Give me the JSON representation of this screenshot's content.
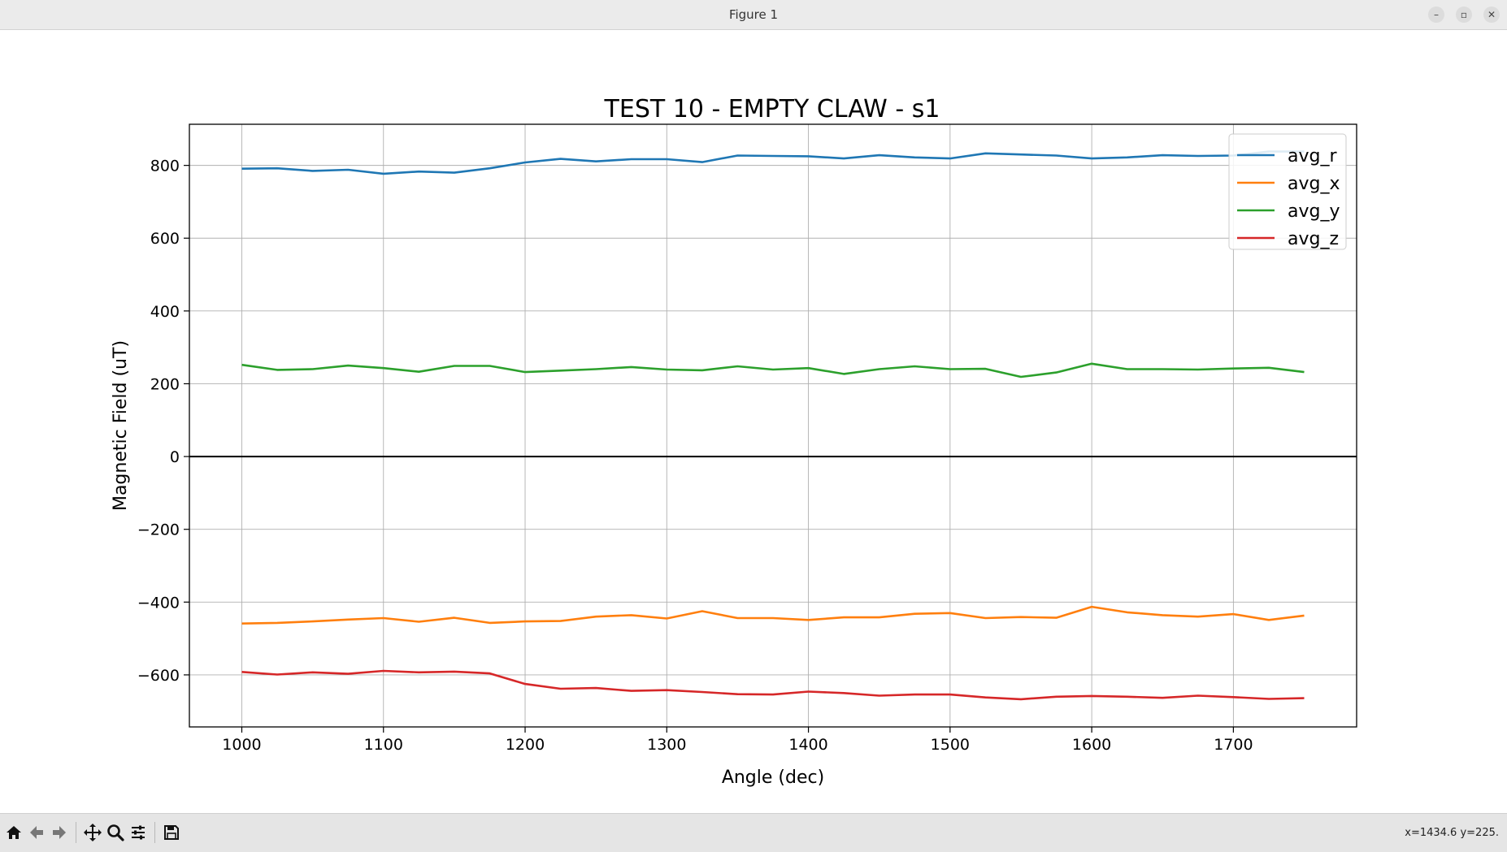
{
  "window": {
    "title": "Figure 1"
  },
  "window_controls": {
    "minimize": "–",
    "maximize": "▫",
    "close": "✕"
  },
  "status": {
    "coords": "x=1434.6 y=225."
  },
  "toolbar": {
    "buttons": [
      "home-icon",
      "back-icon",
      "forward-icon",
      "pan-icon",
      "zoom-icon",
      "configure-icon",
      "save-icon"
    ]
  },
  "chart_data": {
    "type": "line",
    "title": "TEST 10 - EMPTY CLAW - s1",
    "xlabel": "Angle (dec)",
    "ylabel": "Magnetic Field (uT)",
    "xlim": [
      963,
      1787
    ],
    "ylim": [
      -743,
      913
    ],
    "xticks": [
      1000,
      1100,
      1200,
      1300,
      1400,
      1500,
      1600,
      1700
    ],
    "yticks": [
      -600,
      -400,
      -200,
      0,
      200,
      400,
      600,
      800
    ],
    "grid": true,
    "legend_position": "top-right",
    "hline_at": 0,
    "x": [
      1000,
      1025,
      1050,
      1075,
      1100,
      1125,
      1150,
      1175,
      1200,
      1225,
      1250,
      1275,
      1300,
      1325,
      1350,
      1375,
      1400,
      1425,
      1450,
      1475,
      1500,
      1525,
      1550,
      1575,
      1600,
      1625,
      1650,
      1675,
      1700,
      1725,
      1750
    ],
    "series": [
      {
        "name": "avg_r",
        "color": "#1f77b4",
        "values": [
          791,
          792,
          785,
          788,
          777,
          783,
          780,
          792,
          808,
          818,
          811,
          817,
          817,
          809,
          827,
          826,
          825,
          819,
          828,
          822,
          819,
          833,
          830,
          827,
          819,
          822,
          828,
          826,
          827,
          838,
          838
        ]
      },
      {
        "name": "avg_x",
        "color": "#ff7f0e",
        "values": [
          -459,
          -457,
          -453,
          -448,
          -444,
          -454,
          -443,
          -457,
          -453,
          -452,
          -440,
          -436,
          -445,
          -425,
          -444,
          -444,
          -449,
          -442,
          -442,
          -432,
          -430,
          -444,
          -441,
          -443,
          -413,
          -428,
          -436,
          -440,
          -433,
          -449,
          -437
        ]
      },
      {
        "name": "avg_y",
        "color": "#2ca02c",
        "values": [
          252,
          238,
          240,
          250,
          243,
          233,
          249,
          249,
          232,
          236,
          240,
          246,
          239,
          237,
          248,
          239,
          243,
          227,
          240,
          248,
          240,
          241,
          219,
          231,
          255,
          240,
          240,
          239,
          242,
          244,
          232
        ]
      },
      {
        "name": "avg_z",
        "color": "#d62728",
        "values": [
          -592,
          -599,
          -593,
          -597,
          -589,
          -593,
          -591,
          -596,
          -625,
          -638,
          -636,
          -644,
          -642,
          -647,
          -653,
          -654,
          -646,
          -650,
          -657,
          -654,
          -654,
          -662,
          -667,
          -660,
          -658,
          -660,
          -663,
          -657,
          -661,
          -666,
          -664
        ]
      }
    ]
  }
}
